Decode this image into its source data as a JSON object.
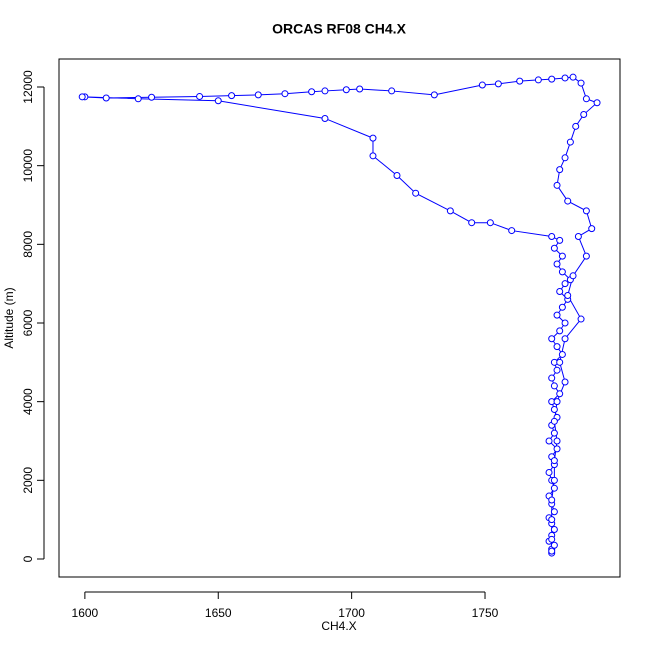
{
  "chart_data": {
    "type": "scatter-line",
    "title": "ORCAS RF08 CH4.X",
    "x_label": "CH4.X",
    "y_label": "Altitude (m)",
    "color": "#0000ff",
    "x": [
      1775,
      1775,
      1776,
      1774,
      1775,
      1776,
      1775,
      1774,
      1776,
      1775,
      1774,
      1776,
      1775,
      1774,
      1776,
      1775,
      1777,
      1774,
      1776,
      1775,
      1777,
      1776,
      1775,
      1778,
      1776,
      1775,
      1777,
      1776,
      1779,
      1777,
      1775,
      1778,
      1780,
      1777,
      1779,
      1781,
      1778,
      1780,
      1782,
      1779,
      1777,
      1779,
      1776,
      1778,
      1775,
      1760,
      1752,
      1745,
      1737,
      1724,
      1717,
      1708,
      1708,
      1690,
      1650,
      1620,
      1600,
      1599,
      1608,
      1625,
      1643,
      1655,
      1665,
      1675,
      1685,
      1690,
      1698,
      1703,
      1715,
      1731,
      1749,
      1755,
      1763,
      1770,
      1775,
      1780,
      1783,
      1786,
      1788,
      1792,
      1787,
      1784,
      1782,
      1780,
      1778,
      1777,
      1781,
      1788,
      1790,
      1785,
      1788,
      1783,
      1781,
      1786,
      1780,
      1778,
      1780,
      1777,
      1776,
      1777,
      1776,
      1776,
      1775,
      1775,
      1775,
      1775
    ],
    "y": [
      150,
      250,
      350,
      450,
      600,
      750,
      900,
      1050,
      1200,
      1400,
      1600,
      1800,
      2000,
      2200,
      2400,
      2600,
      2800,
      3000,
      3200,
      3400,
      3600,
      3800,
      4000,
      4200,
      4400,
      4600,
      4800,
      5000,
      5200,
      5400,
      5600,
      5800,
      6000,
      6200,
      6400,
      6600,
      6800,
      7000,
      7100,
      7300,
      7500,
      7700,
      7900,
      8100,
      8200,
      8350,
      8550,
      8550,
      8850,
      9300,
      9750,
      10250,
      10700,
      11200,
      11650,
      11700,
      11750,
      11750,
      11720,
      11740,
      11760,
      11780,
      11800,
      11830,
      11880,
      11900,
      11930,
      11950,
      11900,
      11800,
      12050,
      12080,
      12150,
      12180,
      12200,
      12230,
      12250,
      12100,
      11700,
      11600,
      11300,
      11000,
      10600,
      10200,
      9900,
      9500,
      9100,
      8850,
      8400,
      8200,
      7700,
      7200,
      6700,
      6100,
      5600,
      5000,
      4500,
      4000,
      3500,
      3000,
      2500,
      2000,
      1500,
      1000,
      500,
      200
    ],
    "xlim": [
      1590.3,
      1800.6
    ],
    "ylim": [
      -458,
      12712
    ],
    "xticks": [
      1600,
      1650,
      1700,
      1750
    ],
    "yticks": [
      0,
      2000,
      4000,
      6000,
      8000,
      10000,
      12000
    ]
  }
}
